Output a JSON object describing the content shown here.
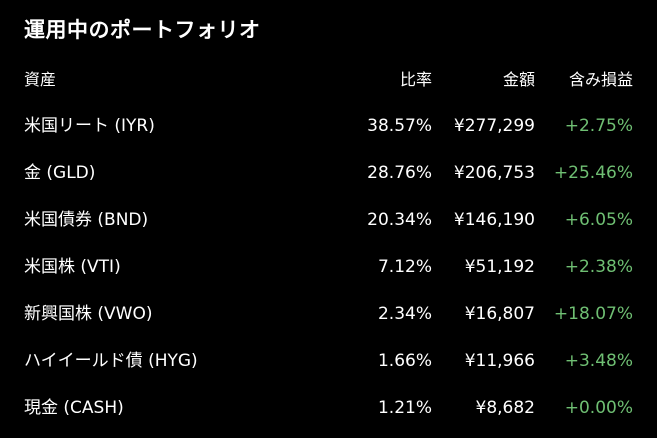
{
  "title": "運用中のポートフォリオ",
  "columns": {
    "asset": "資産",
    "ratio": "比率",
    "amount": "金額",
    "gain": "含み損益"
  },
  "colors": {
    "background": "#000000",
    "text": "#ffffff",
    "gain_positive": "#6fbf73"
  },
  "rows": [
    {
      "asset": "米国リート (IYR)",
      "ratio": "38.57%",
      "amount": "¥277,299",
      "gain": "+2.75%"
    },
    {
      "asset": "金 (GLD)",
      "ratio": "28.76%",
      "amount": "¥206,753",
      "gain": "+25.46%"
    },
    {
      "asset": "米国債券 (BND)",
      "ratio": "20.34%",
      "amount": "¥146,190",
      "gain": "+6.05%"
    },
    {
      "asset": "米国株 (VTI)",
      "ratio": "7.12%",
      "amount": "¥51,192",
      "gain": "+2.38%"
    },
    {
      "asset": "新興国株 (VWO)",
      "ratio": "2.34%",
      "amount": "¥16,807",
      "gain": "+18.07%"
    },
    {
      "asset": "ハイイールド債 (HYG)",
      "ratio": "1.66%",
      "amount": "¥11,966",
      "gain": "+3.48%"
    },
    {
      "asset": "現金 (CASH)",
      "ratio": "1.21%",
      "amount": "¥8,682",
      "gain": "+0.00%"
    }
  ]
}
